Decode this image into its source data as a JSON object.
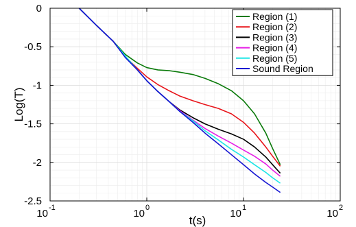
{
  "chart_data": {
    "type": "line",
    "title": "",
    "xlabel": "t(s)",
    "ylabel": "Log(T)",
    "xscale": "log",
    "xlim": [
      0.1,
      100
    ],
    "ylim": [
      -2.5,
      0
    ],
    "grid": true,
    "legend_position": "top-right",
    "x_ticks": [
      {
        "base": "10",
        "exp": "-1"
      },
      {
        "base": "10",
        "exp": "0"
      },
      {
        "base": "10",
        "exp": "1"
      },
      {
        "base": "10",
        "exp": "2"
      }
    ],
    "y_ticks": [
      {
        "value": 0,
        "label": "0"
      },
      {
        "value": -0.5,
        "label": "-0.5"
      },
      {
        "value": -1,
        "label": "-1"
      },
      {
        "value": -1.5,
        "label": "-1.5"
      },
      {
        "value": -2,
        "label": "-2"
      },
      {
        "value": -2.5,
        "label": "-2.5"
      }
    ],
    "series": [
      {
        "name": "Region (1)",
        "color": "#0a7a0a",
        "x": [
          0.2,
          0.3,
          0.45,
          0.6,
          0.8,
          1.0,
          1.3,
          1.7,
          2.2,
          3.0,
          4.0,
          5.5,
          7.5,
          10,
          13,
          17,
          20,
          24
        ],
        "y": [
          0.0,
          -0.22,
          -0.43,
          -0.6,
          -0.71,
          -0.77,
          -0.8,
          -0.81,
          -0.83,
          -0.86,
          -0.91,
          -0.98,
          -1.07,
          -1.2,
          -1.37,
          -1.62,
          -1.82,
          -2.03
        ]
      },
      {
        "name": "Region (2)",
        "color": "#e8141a",
        "x": [
          0.2,
          0.3,
          0.45,
          0.6,
          0.8,
          1.0,
          1.3,
          1.7,
          2.2,
          3.0,
          4.0,
          5.5,
          7.5,
          10,
          13,
          17,
          20,
          24
        ],
        "y": [
          0.0,
          -0.22,
          -0.43,
          -0.63,
          -0.78,
          -0.89,
          -0.99,
          -1.07,
          -1.14,
          -1.2,
          -1.25,
          -1.3,
          -1.37,
          -1.48,
          -1.62,
          -1.8,
          -1.92,
          -2.05
        ]
      },
      {
        "name": "Region (3)",
        "color": "#000000",
        "x": [
          0.2,
          0.3,
          0.45,
          0.6,
          0.8,
          1.0,
          1.3,
          1.7,
          2.2,
          3.0,
          4.0,
          5.5,
          7.5,
          10,
          13,
          17,
          20,
          24
        ],
        "y": [
          0.0,
          -0.22,
          -0.43,
          -0.63,
          -0.8,
          -0.94,
          -1.08,
          -1.21,
          -1.32,
          -1.42,
          -1.5,
          -1.57,
          -1.63,
          -1.7,
          -1.8,
          -1.93,
          -2.03,
          -2.14
        ]
      },
      {
        "name": "Region (4)",
        "color": "#e61ee6",
        "x": [
          0.2,
          0.3,
          0.45,
          0.6,
          0.8,
          1.0,
          1.3,
          1.7,
          2.2,
          3.0,
          4.0,
          5.5,
          7.5,
          10,
          13,
          17,
          20,
          24
        ],
        "y": [
          0.0,
          -0.22,
          -0.43,
          -0.63,
          -0.8,
          -0.94,
          -1.08,
          -1.21,
          -1.33,
          -1.45,
          -1.56,
          -1.66,
          -1.75,
          -1.84,
          -1.92,
          -2.02,
          -2.1,
          -2.18
        ]
      },
      {
        "name": "Region (5)",
        "color": "#1ee6e6",
        "x": [
          0.2,
          0.3,
          0.45,
          0.6,
          0.8,
          1.0,
          1.3,
          1.7,
          2.2,
          3.0,
          4.0,
          5.5,
          7.5,
          10,
          13,
          17,
          20,
          24
        ],
        "y": [
          0.0,
          -0.22,
          -0.43,
          -0.62,
          -0.8,
          -0.94,
          -1.08,
          -1.21,
          -1.34,
          -1.46,
          -1.59,
          -1.71,
          -1.83,
          -1.93,
          -2.03,
          -2.13,
          -2.2,
          -2.27
        ]
      },
      {
        "name": "Sound Region",
        "color": "#1414d2",
        "x": [
          0.2,
          0.3,
          0.45,
          0.6,
          0.8,
          1.0,
          1.3,
          1.7,
          2.2,
          3.0,
          4.0,
          5.5,
          7.5,
          10,
          13,
          17,
          20,
          24
        ],
        "y": [
          0.0,
          -0.22,
          -0.43,
          -0.64,
          -0.8,
          -0.94,
          -1.08,
          -1.21,
          -1.34,
          -1.48,
          -1.62,
          -1.76,
          -1.9,
          -2.03,
          -2.15,
          -2.26,
          -2.32,
          -2.39
        ]
      }
    ]
  }
}
